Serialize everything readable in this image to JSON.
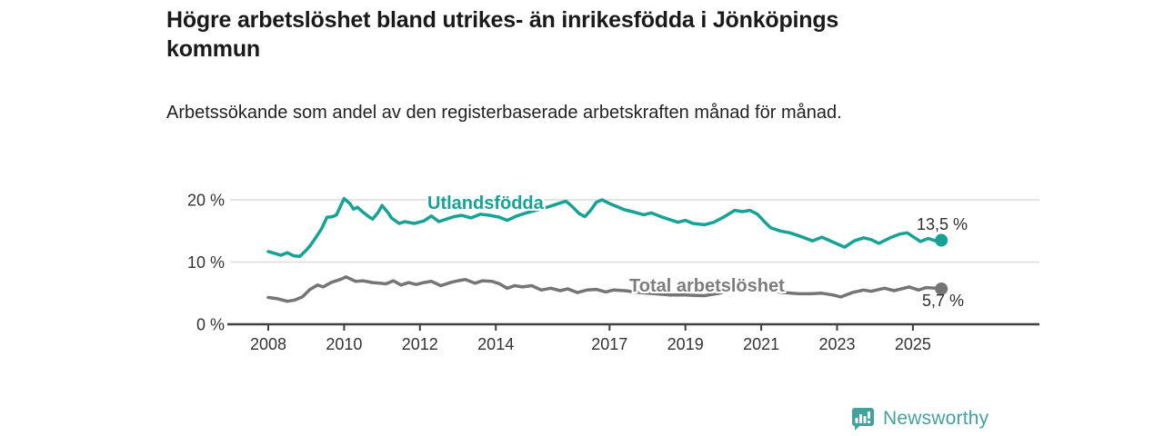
{
  "header": {
    "title": "Högre arbetslöshet bland utrikes- än inrikesfödda i Jönköpings kommun",
    "subtitle": "Arbetssökande som andel av den registerbaserade arbetskraften månad för månad."
  },
  "footer": {
    "brand": "Newsworthy"
  },
  "colors": {
    "teal": "#16a294",
    "gray": "#757575",
    "gridline": "#dcdcdc",
    "axis": "#3f3f3f",
    "tick_text": "#333333",
    "logo": "#45a19c"
  },
  "chart_data": {
    "type": "line",
    "title": "Högre arbetslöshet bland utrikes- än inrikesfödda i Jönköpings kommun",
    "subtitle": "Arbetssökande som andel av den registerbaserade arbetskraften månad för månad.",
    "xlabel": "",
    "ylabel": "",
    "xlim": [
      2007.7,
      2026.2
    ],
    "ylim": [
      0,
      21.5
    ],
    "grid": "horizontal-only",
    "legend_position": "inline-labels",
    "x_ticks": [
      2008,
      2010,
      2012,
      2014,
      2017,
      2019,
      2021,
      2023,
      2025
    ],
    "x_tick_labels": [
      "2008",
      "2010",
      "2012",
      "2014",
      "2017",
      "2019",
      "2021",
      "2023",
      "2025"
    ],
    "y_ticks": [
      0,
      10,
      20
    ],
    "y_tick_labels": [
      "0 %",
      "10 %",
      "20 %"
    ],
    "series": [
      {
        "name": "Utlandsfödda",
        "color": "#16a294",
        "end_label": "13,5 %",
        "end_value": 13.5,
        "points": [
          [
            2008.0,
            11.7
          ],
          [
            2008.17,
            11.4
          ],
          [
            2008.33,
            11.1
          ],
          [
            2008.5,
            11.5
          ],
          [
            2008.67,
            11.0
          ],
          [
            2008.83,
            10.9
          ],
          [
            2009.0,
            11.9
          ],
          [
            2009.1,
            12.6
          ],
          [
            2009.25,
            13.9
          ],
          [
            2009.4,
            15.3
          ],
          [
            2009.55,
            17.2
          ],
          [
            2009.7,
            17.3
          ],
          [
            2009.8,
            17.6
          ],
          [
            2009.9,
            18.9
          ],
          [
            2010.0,
            20.2
          ],
          [
            2010.15,
            19.4
          ],
          [
            2010.25,
            18.5
          ],
          [
            2010.35,
            18.8
          ],
          [
            2010.5,
            18.0
          ],
          [
            2010.65,
            17.3
          ],
          [
            2010.75,
            16.9
          ],
          [
            2010.9,
            18.0
          ],
          [
            2011.0,
            19.1
          ],
          [
            2011.15,
            18.0
          ],
          [
            2011.25,
            17.1
          ],
          [
            2011.45,
            16.2
          ],
          [
            2011.6,
            16.5
          ],
          [
            2011.85,
            16.2
          ],
          [
            2012.1,
            16.6
          ],
          [
            2012.3,
            17.4
          ],
          [
            2012.5,
            16.5
          ],
          [
            2012.7,
            16.9
          ],
          [
            2012.9,
            17.3
          ],
          [
            2013.1,
            17.5
          ],
          [
            2013.35,
            17.1
          ],
          [
            2013.6,
            17.7
          ],
          [
            2013.85,
            17.5
          ],
          [
            2014.1,
            17.2
          ],
          [
            2014.3,
            16.7
          ],
          [
            2014.55,
            17.4
          ],
          [
            2014.8,
            17.9
          ],
          [
            2015.1,
            18.4
          ],
          [
            2015.4,
            18.9
          ],
          [
            2015.6,
            19.3
          ],
          [
            2015.85,
            19.8
          ],
          [
            2016.0,
            19.0
          ],
          [
            2016.2,
            17.8
          ],
          [
            2016.35,
            17.3
          ],
          [
            2016.5,
            18.3
          ],
          [
            2016.65,
            19.6
          ],
          [
            2016.8,
            20.0
          ],
          [
            2017.0,
            19.4
          ],
          [
            2017.2,
            18.9
          ],
          [
            2017.4,
            18.4
          ],
          [
            2017.6,
            18.1
          ],
          [
            2017.9,
            17.6
          ],
          [
            2018.1,
            17.9
          ],
          [
            2018.4,
            17.2
          ],
          [
            2018.6,
            16.8
          ],
          [
            2018.8,
            16.4
          ],
          [
            2019.0,
            16.7
          ],
          [
            2019.2,
            16.2
          ],
          [
            2019.5,
            16.0
          ],
          [
            2019.75,
            16.4
          ],
          [
            2020.0,
            17.2
          ],
          [
            2020.3,
            18.3
          ],
          [
            2020.5,
            18.1
          ],
          [
            2020.7,
            18.3
          ],
          [
            2020.9,
            17.7
          ],
          [
            2021.1,
            16.4
          ],
          [
            2021.25,
            15.5
          ],
          [
            2021.5,
            15.0
          ],
          [
            2021.75,
            14.7
          ],
          [
            2022.0,
            14.2
          ],
          [
            2022.35,
            13.4
          ],
          [
            2022.6,
            14.0
          ],
          [
            2022.9,
            13.2
          ],
          [
            2023.2,
            12.4
          ],
          [
            2023.45,
            13.4
          ],
          [
            2023.7,
            13.9
          ],
          [
            2023.9,
            13.6
          ],
          [
            2024.1,
            13.0
          ],
          [
            2024.4,
            13.9
          ],
          [
            2024.65,
            14.5
          ],
          [
            2024.85,
            14.7
          ],
          [
            2025.05,
            13.9
          ],
          [
            2025.2,
            13.3
          ],
          [
            2025.4,
            13.8
          ],
          [
            2025.6,
            13.4
          ],
          [
            2025.75,
            13.5
          ]
        ]
      },
      {
        "name": "Total arbetslöshet",
        "color": "#757575",
        "end_label": "5,7 %",
        "end_value": 5.7,
        "points": [
          [
            2008.0,
            4.3
          ],
          [
            2008.25,
            4.1
          ],
          [
            2008.5,
            3.7
          ],
          [
            2008.7,
            3.9
          ],
          [
            2008.9,
            4.4
          ],
          [
            2009.1,
            5.6
          ],
          [
            2009.3,
            6.3
          ],
          [
            2009.45,
            6.0
          ],
          [
            2009.65,
            6.7
          ],
          [
            2009.9,
            7.2
          ],
          [
            2010.05,
            7.6
          ],
          [
            2010.3,
            6.9
          ],
          [
            2010.5,
            7.0
          ],
          [
            2010.75,
            6.7
          ],
          [
            2010.95,
            6.6
          ],
          [
            2011.1,
            6.5
          ],
          [
            2011.3,
            7.0
          ],
          [
            2011.5,
            6.3
          ],
          [
            2011.7,
            6.7
          ],
          [
            2011.9,
            6.4
          ],
          [
            2012.1,
            6.7
          ],
          [
            2012.3,
            6.9
          ],
          [
            2012.55,
            6.2
          ],
          [
            2012.8,
            6.7
          ],
          [
            2013.0,
            7.0
          ],
          [
            2013.2,
            7.2
          ],
          [
            2013.45,
            6.6
          ],
          [
            2013.65,
            7.0
          ],
          [
            2013.9,
            6.9
          ],
          [
            2014.1,
            6.5
          ],
          [
            2014.3,
            5.8
          ],
          [
            2014.5,
            6.2
          ],
          [
            2014.7,
            6.0
          ],
          [
            2014.95,
            6.2
          ],
          [
            2015.2,
            5.5
          ],
          [
            2015.45,
            5.8
          ],
          [
            2015.7,
            5.4
          ],
          [
            2015.9,
            5.7
          ],
          [
            2016.15,
            5.1
          ],
          [
            2016.4,
            5.5
          ],
          [
            2016.65,
            5.6
          ],
          [
            2016.9,
            5.2
          ],
          [
            2017.1,
            5.5
          ],
          [
            2017.4,
            5.4
          ],
          [
            2017.8,
            5.1
          ],
          [
            2018.2,
            4.9
          ],
          [
            2018.6,
            4.7
          ],
          [
            2019.0,
            4.7
          ],
          [
            2019.5,
            4.6
          ],
          [
            2019.9,
            5.0
          ],
          [
            2020.3,
            5.9
          ],
          [
            2020.6,
            6.1
          ],
          [
            2020.9,
            5.8
          ],
          [
            2021.2,
            5.4
          ],
          [
            2021.6,
            5.1
          ],
          [
            2022.0,
            4.9
          ],
          [
            2022.3,
            4.9
          ],
          [
            2022.6,
            5.0
          ],
          [
            2022.9,
            4.7
          ],
          [
            2023.1,
            4.4
          ],
          [
            2023.4,
            5.1
          ],
          [
            2023.7,
            5.5
          ],
          [
            2023.9,
            5.3
          ],
          [
            2024.25,
            5.8
          ],
          [
            2024.5,
            5.4
          ],
          [
            2024.9,
            6.0
          ],
          [
            2025.15,
            5.5
          ],
          [
            2025.35,
            5.9
          ],
          [
            2025.6,
            5.8
          ],
          [
            2025.75,
            5.7
          ]
        ]
      }
    ]
  }
}
